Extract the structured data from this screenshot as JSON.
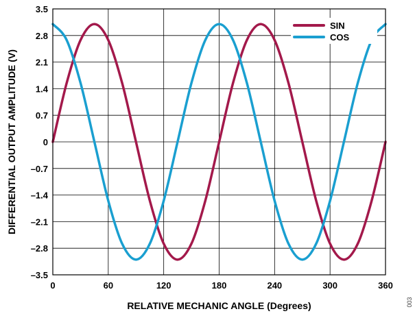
{
  "chart_data": {
    "type": "line",
    "title": "",
    "xlabel": "RELATIVE MECHANIC ANGLE (Degrees)",
    "ylabel": "DIFFERENTIAL OUTPUT AMPLITUDE (V)",
    "xlim": [
      0,
      360
    ],
    "ylim": [
      -3.5,
      3.5
    ],
    "x_ticks": [
      0,
      60,
      120,
      180,
      240,
      300,
      360
    ],
    "x_tick_labels": [
      "0",
      "60",
      "120",
      "180",
      "240",
      "300",
      "360"
    ],
    "y_ticks": [
      3.5,
      2.8,
      2.1,
      1.4,
      0.7,
      0,
      -0.7,
      -1.4,
      -2.1,
      -2.8,
      -3.5
    ],
    "y_tick_labels": [
      "3.5",
      "2.8",
      "2.1",
      "1.4",
      "0.7",
      "0",
      "–0.7",
      "–1.4",
      "–2.1",
      "–2.8",
      "–3.5"
    ],
    "grid": true,
    "legend_position": "top-right",
    "figure_id": "003",
    "series": [
      {
        "name": "SIN",
        "color": "#a3194b",
        "x": [
          0,
          15,
          30,
          45,
          60,
          75,
          90,
          105,
          120,
          135,
          150,
          165,
          180,
          195,
          210,
          225,
          240,
          255,
          270,
          285,
          300,
          315,
          330,
          345,
          360
        ],
        "values": [
          0,
          1.55,
          2.68,
          3.1,
          2.68,
          1.55,
          0,
          -1.55,
          -2.68,
          -3.1,
          -2.68,
          -1.55,
          0,
          1.55,
          2.68,
          3.1,
          2.68,
          1.55,
          0,
          -1.55,
          -2.68,
          -3.1,
          -2.68,
          -1.55,
          0
        ]
      },
      {
        "name": "COS",
        "color": "#1a9fd0",
        "x": [
          0,
          15,
          30,
          45,
          60,
          75,
          90,
          105,
          120,
          135,
          150,
          165,
          180,
          195,
          210,
          225,
          240,
          255,
          270,
          285,
          300,
          315,
          330,
          345,
          360
        ],
        "values": [
          3.1,
          2.68,
          1.55,
          0,
          -1.55,
          -2.68,
          -3.1,
          -2.68,
          -1.55,
          0,
          1.55,
          2.68,
          3.1,
          2.68,
          1.55,
          0,
          -1.55,
          -2.68,
          -3.1,
          -2.68,
          -1.55,
          0,
          1.55,
          2.68,
          3.1
        ]
      }
    ]
  }
}
